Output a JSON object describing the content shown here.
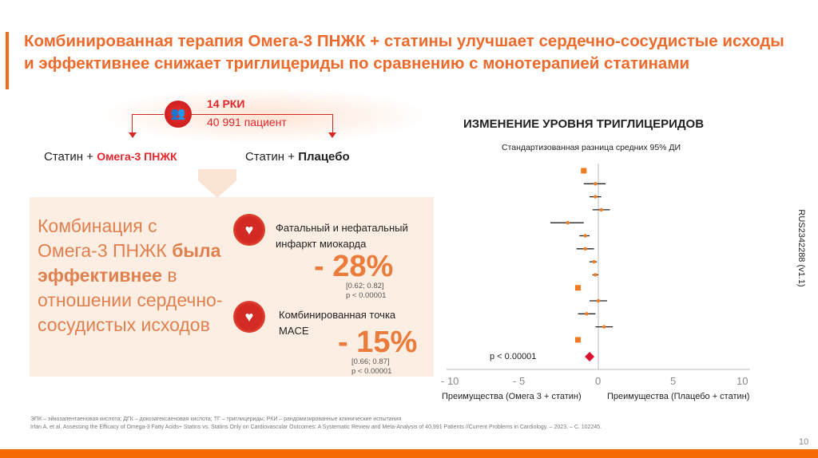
{
  "title": "Комбинированная терапия Омега-3 ПНЖК + статины улучшает сердечно-сосудистые исходы и эффективнее снижает триглицериды по сравнению с монотерапией статинами",
  "study": {
    "icon": "people-group-icon",
    "rct": "14 РКИ",
    "patients": "40 991 пациент"
  },
  "arms": {
    "arm1_prefix": "Статин + ",
    "arm1_drug": "Омега-3 ПНЖК",
    "arm2_prefix": "Статин + ",
    "arm2_drug": "Плацебо"
  },
  "summary": {
    "part1": "Комбинация с Омега-3 ПНЖК ",
    "bold1": "была эффективнее",
    "part2": " в отношении сердечно-сосудистых исходов"
  },
  "outcomes": [
    {
      "icon": "heart-alert-icon",
      "label": "Фатальный и нефатальный инфаркт миокарда",
      "value": "- 28%",
      "ci": "[0.62; 0.82]",
      "p": "p < 0.00001"
    },
    {
      "icon": "heart-plus-icon",
      "label": "Комбинированная точка MACE",
      "value": "- 15%",
      "ci": "[0.66; 0.87]",
      "p": "p < 0.00001"
    }
  ],
  "chart_data": {
    "type": "forest",
    "title": "ИЗМЕНЕНИЕ УРОВНЯ ТРИГЛИЦЕРИДОВ",
    "subtitle": "Стандартизованная разница средних 95% ДИ",
    "xlim": [
      -10,
      10
    ],
    "xticks": [
      "- 10",
      "- 5",
      "0",
      "5",
      "10"
    ],
    "xtick_values": [
      -10,
      -5,
      0,
      5,
      10
    ],
    "xlabel_left": "Преимущества (Омега 3 + статин)",
    "xlabel_right": "Преимущества (Плацебо + статин)",
    "points": [
      {
        "est": -1.0,
        "lo": null,
        "hi": null,
        "marker": "square"
      },
      {
        "est": -0.2,
        "lo": -1.0,
        "hi": 0.5
      },
      {
        "est": -0.2,
        "lo": -0.6,
        "hi": 0.2
      },
      {
        "est": 0.2,
        "lo": -0.4,
        "hi": 0.8
      },
      {
        "est": -2.1,
        "lo": -3.3,
        "hi": -1.0
      },
      {
        "est": -0.9,
        "lo": -1.3,
        "hi": -0.6
      },
      {
        "est": -0.9,
        "lo": -1.5,
        "hi": -0.3
      },
      {
        "est": -0.3,
        "lo": -0.6,
        "hi": -0.1
      },
      {
        "est": -0.2,
        "lo": -0.4,
        "hi": 0.0
      },
      {
        "est": -1.4,
        "lo": null,
        "hi": null,
        "marker": "square"
      },
      {
        "est": 0.0,
        "lo": -0.6,
        "hi": 0.6
      },
      {
        "est": -0.8,
        "lo": -1.4,
        "hi": -0.2
      },
      {
        "est": 0.4,
        "lo": -0.2,
        "hi": 1.0
      },
      {
        "est": -1.4,
        "lo": null,
        "hi": null,
        "marker": "square"
      }
    ],
    "pooled": {
      "est": -0.6,
      "p": "p < 0.00001"
    },
    "colors": {
      "point": "#f07b22",
      "pooled": "#d9102e",
      "ci": "#222222"
    }
  },
  "footnote": {
    "abbr": "ЭПК – эйкозапентаеновая кислота; ДГК – докозагексаеновая кислота; ТГ – триглицериды; РКИ – рандомизированные клинические испытания",
    "ref": "Irfan A. et al. Assessing the Efficacy of Omega-3 Fatty Acids+ Statins vs. Statins Only on Cardiovascular Outcomes: A Systematic Review and Meta-Analysis of 40,991 Patients //Current Problems in Cardiology. – 2023. – С. 102245."
  },
  "code": "RUS2342288 (v1.1)",
  "page": "10",
  "colors": {
    "accent": "#f56a05",
    "title": "#ec6a2c"
  }
}
